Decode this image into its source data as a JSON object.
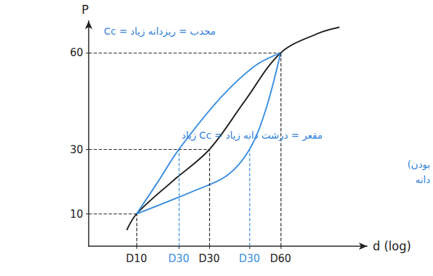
{
  "chart_data": {
    "type": "line",
    "y_label": "P",
    "x_label": "d (log)",
    "xlim": [
      0,
      402
    ],
    "ylim": [
      0,
      70
    ],
    "xticks": [
      {
        "value": 69,
        "label": "D10"
      },
      {
        "value": 130,
        "label": "D30"
      },
      {
        "value": 174,
        "label": "D30"
      },
      {
        "value": 232,
        "label": "D30"
      },
      {
        "value": 277,
        "label": "D60"
      }
    ],
    "yticks": [
      10,
      30,
      60
    ],
    "grid": false,
    "series": [
      {
        "color": "#222222",
        "x": [
          55,
          69,
          120,
          174,
          225,
          277,
          330,
          362
        ],
        "values": [
          5,
          10,
          20,
          30,
          45,
          60,
          66,
          68
        ]
      },
      {
        "color": "#3a8fe0",
        "x": [
          69,
          100,
          130,
          190,
          240,
          277
        ],
        "values": [
          10,
          20,
          30,
          46,
          56,
          60
        ]
      },
      {
        "color": "#3a8fe0",
        "x": [
          69,
          150,
          200,
          232,
          255,
          277
        ],
        "values": [
          10,
          17,
          22,
          30,
          42,
          60
        ]
      }
    ],
    "annotations": [
      "محدب = ریزدانه زیاد = Cc",
      "مقعر = درشت دانه زیاد = Cc زیاد",
      "بودن)",
      "دانه"
    ]
  }
}
